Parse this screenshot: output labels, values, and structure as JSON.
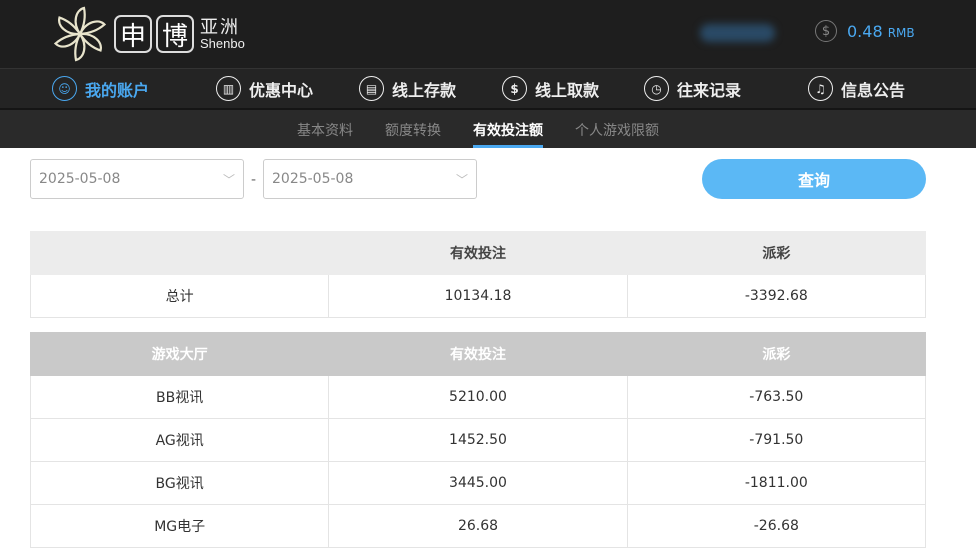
{
  "header": {
    "logo": {
      "char1": "申",
      "char2": "博",
      "cn": "亚洲",
      "en": "Shenbo"
    },
    "balance": "0.48",
    "currency": "RMB"
  },
  "nav": [
    {
      "label": "我的账户",
      "icon": "user-icon"
    },
    {
      "label": "优惠中心",
      "icon": "gift-icon"
    },
    {
      "label": "线上存款",
      "icon": "deposit-icon"
    },
    {
      "label": "线上取款",
      "icon": "withdraw-icon"
    },
    {
      "label": "往来记录",
      "icon": "record-icon"
    },
    {
      "label": "信息公告",
      "icon": "bell-icon"
    }
  ],
  "subnav": [
    "基本资料",
    "额度转换",
    "有效投注额",
    "个人游戏限额"
  ],
  "filters": {
    "start": "2025-05-08",
    "end": "2025-05-08",
    "separator": "-",
    "query": "查询"
  },
  "summary": {
    "headers": [
      "",
      "有效投注",
      "派彩"
    ],
    "row": [
      "总计",
      "10134.18",
      "-3392.68"
    ]
  },
  "detail": {
    "headers": [
      "游戏大厅",
      "有效投注",
      "派彩"
    ],
    "rows": [
      [
        "BB视讯",
        "5210.00",
        "-763.50"
      ],
      [
        "AG视讯",
        "1452.50",
        "-791.50"
      ],
      [
        "BG视讯",
        "3445.00",
        "-1811.00"
      ],
      [
        "MG电子",
        "26.68",
        "-26.68"
      ]
    ]
  },
  "colors": {
    "accent": "#4aa8f0",
    "button": "#5bb8f5"
  }
}
